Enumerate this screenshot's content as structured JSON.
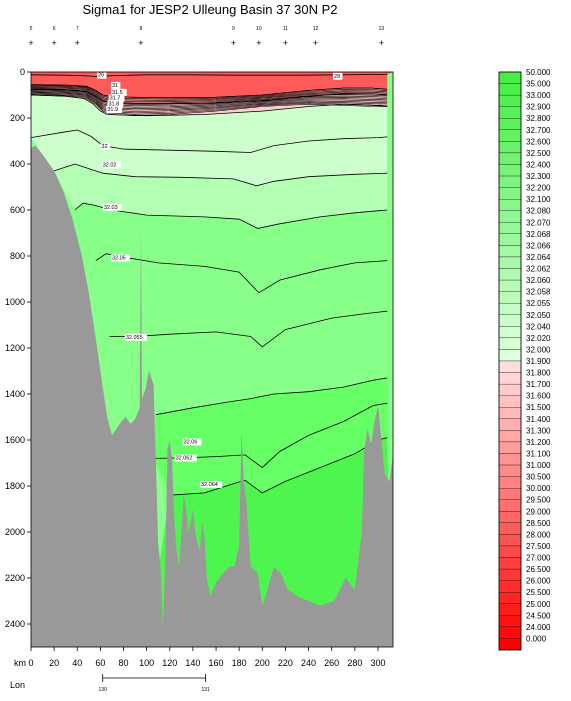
{
  "chart_data": {
    "type": "contour-section",
    "title": "Sigma1 for JESP2 Ulleung Basin 37 30N P2",
    "x_unit_label": "km",
    "x_ticks": [
      0,
      20,
      40,
      60,
      80,
      100,
      120,
      140,
      160,
      180,
      200,
      220,
      240,
      260,
      280,
      300
    ],
    "xlim": [
      0,
      313
    ],
    "y_ticks": [
      0,
      200,
      400,
      600,
      800,
      1000,
      1200,
      1400,
      1600,
      1800,
      2000,
      2200,
      2400
    ],
    "ylim": [
      0,
      2500
    ],
    "y_inverted": true,
    "lon_axis": {
      "label": "Lon",
      "ticks": [
        {
          "label": "130",
          "km": 62
        },
        {
          "label": "131",
          "km": 151
        }
      ]
    },
    "station_km": [
      0,
      20,
      40,
      95,
      175,
      197,
      220,
      246,
      303
    ],
    "station_labels": [
      "5",
      "6",
      "7",
      "8",
      "9",
      "10",
      "11",
      "12",
      "13"
    ],
    "legend_levels": [
      "50.000",
      "35.000",
      "33.000",
      "32.900",
      "32.800",
      "32.700",
      "32.600",
      "32.500",
      "32.400",
      "32.300",
      "32.200",
      "32.100",
      "32.080",
      "32.070",
      "32.068",
      "32.066",
      "32.064",
      "32.062",
      "32.060",
      "32.058",
      "32.055",
      "32.050",
      "32.040",
      "32.020",
      "32.000",
      "31.900",
      "31.800",
      "31.700",
      "31.600",
      "31.500",
      "31.400",
      "31.300",
      "31.200",
      "31.100",
      "31.000",
      "30.500",
      "30.000",
      "29.500",
      "29.000",
      "28.500",
      "28.000",
      "27.500",
      "27.000",
      "26.500",
      "26.000",
      "25.500",
      "25.000",
      "24.500",
      "24.000",
      "0.000"
    ],
    "contour_labels": [
      {
        "text": "26",
        "km": 58,
        "depth": 20
      },
      {
        "text": "28",
        "km": 262,
        "depth": 25
      },
      {
        "text": "31",
        "km": 70,
        "depth": 65
      },
      {
        "text": "31.5",
        "km": 70,
        "depth": 95
      },
      {
        "text": "31.7",
        "km": 68,
        "depth": 120
      },
      {
        "text": "31.8",
        "km": 67,
        "depth": 145
      },
      {
        "text": "31.9",
        "km": 66,
        "depth": 170
      },
      {
        "text": "32",
        "km": 61,
        "depth": 330
      },
      {
        "text": "32.02",
        "km": 62,
        "depth": 410
      },
      {
        "text": "32.03",
        "km": 63,
        "depth": 595
      },
      {
        "text": "32.05",
        "km": 70,
        "depth": 815
      },
      {
        "text": "32.055",
        "km": 82,
        "depth": 1160
      },
      {
        "text": "32.06",
        "km": 132,
        "depth": 1615
      },
      {
        "text": "32.062",
        "km": 125,
        "depth": 1685
      },
      {
        "text": "32.064",
        "km": 147,
        "depth": 1800
      }
    ],
    "colors": {
      "bathymetry": "#999999",
      "surface_dense": "#ff5a5a",
      "surface_band": "#ff9a9a",
      "thermocline": "#ffcccc",
      "level_32_00": "#ccffcc",
      "level_32_02": "#b3ffb3",
      "level_32_05": "#88ff88",
      "level_32_06": "#66ff66",
      "level_32_064": "#4ef54e"
    }
  }
}
